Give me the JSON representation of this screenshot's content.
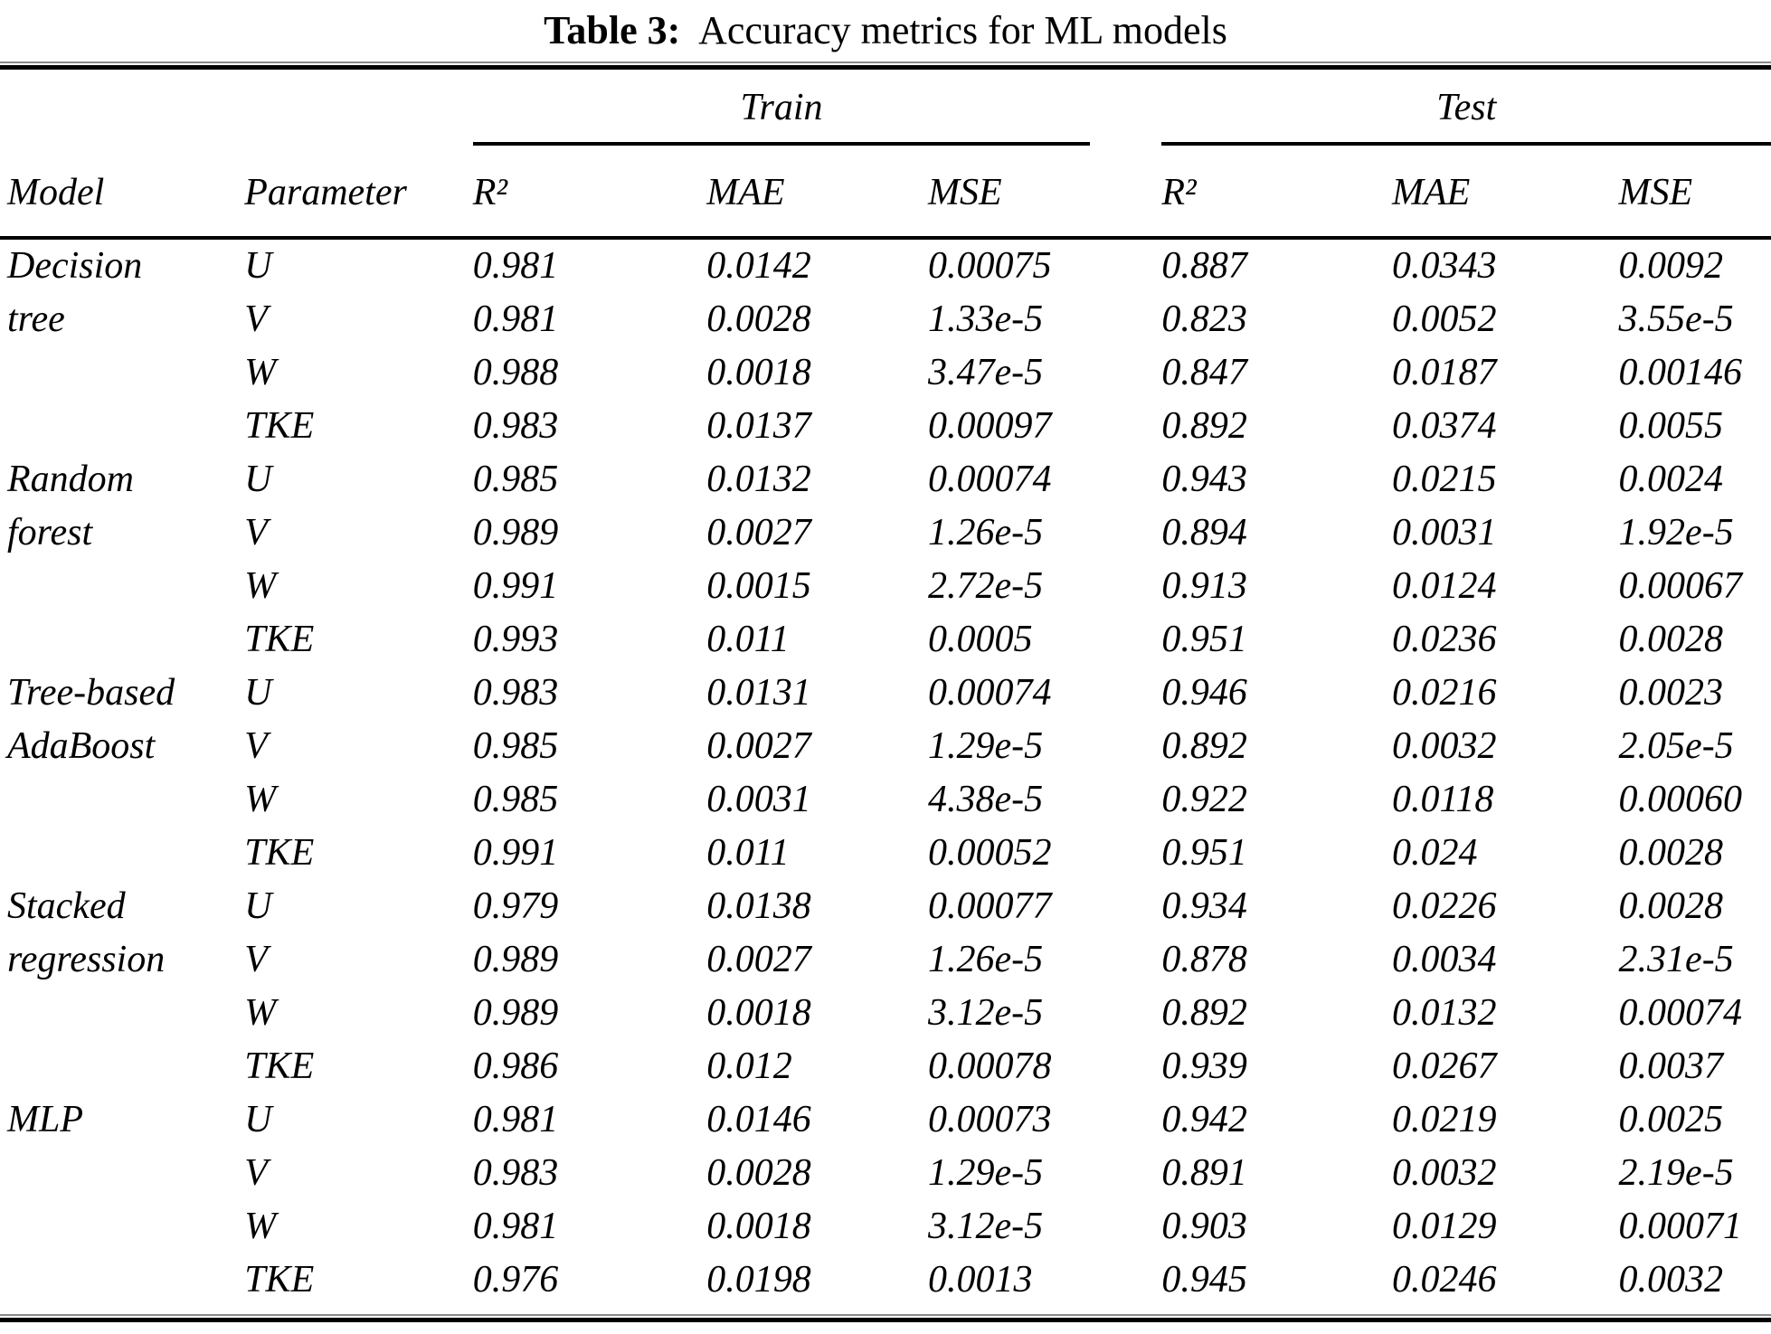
{
  "title": {
    "label": "Table 3:",
    "rest": "Accuracy metrics for ML models"
  },
  "table": {
    "columns": {
      "model": "Model",
      "parameter": "Parameter"
    },
    "groups_header": {
      "train": "Train",
      "test": "Test"
    },
    "metric_headers": [
      "R²",
      "MAE",
      "MSE"
    ],
    "model_groups": [
      {
        "model_lines": [
          "Decision",
          "tree"
        ],
        "rows": [
          {
            "parameter": "U",
            "train": [
              "0.981",
              "0.0142",
              "0.00075"
            ],
            "test": [
              "0.887",
              "0.0343",
              "0.0092"
            ]
          },
          {
            "parameter": "V",
            "train": [
              "0.981",
              "0.0028",
              "1.33e-5"
            ],
            "test": [
              "0.823",
              "0.0052",
              "3.55e-5"
            ]
          },
          {
            "parameter": "W",
            "train": [
              "0.988",
              "0.0018",
              "3.47e-5"
            ],
            "test": [
              "0.847",
              "0.0187",
              "0.00146"
            ]
          },
          {
            "parameter": "TKE",
            "train": [
              "0.983",
              "0.0137",
              "0.00097"
            ],
            "test": [
              "0.892",
              "0.0374",
              "0.0055"
            ]
          }
        ]
      },
      {
        "model_lines": [
          "Random",
          "forest"
        ],
        "rows": [
          {
            "parameter": "U",
            "train": [
              "0.985",
              "0.0132",
              "0.00074"
            ],
            "test": [
              "0.943",
              "0.0215",
              "0.0024"
            ]
          },
          {
            "parameter": "V",
            "train": [
              "0.989",
              "0.0027",
              "1.26e-5"
            ],
            "test": [
              "0.894",
              "0.0031",
              "1.92e-5"
            ]
          },
          {
            "parameter": "W",
            "train": [
              "0.991",
              "0.0015",
              "2.72e-5"
            ],
            "test": [
              "0.913",
              "0.0124",
              "0.00067"
            ]
          },
          {
            "parameter": "TKE",
            "train": [
              "0.993",
              "0.011",
              "0.0005"
            ],
            "test": [
              "0.951",
              "0.0236",
              "0.0028"
            ]
          }
        ]
      },
      {
        "model_lines": [
          "Tree-based",
          "AdaBoost"
        ],
        "rows": [
          {
            "parameter": "U",
            "train": [
              "0.983",
              "0.0131",
              "0.00074"
            ],
            "test": [
              "0.946",
              "0.0216",
              "0.0023"
            ]
          },
          {
            "parameter": "V",
            "train": [
              "0.985",
              "0.0027",
              "1.29e-5"
            ],
            "test": [
              "0.892",
              "0.0032",
              "2.05e-5"
            ]
          },
          {
            "parameter": "W",
            "train": [
              "0.985",
              "0.0031",
              "4.38e-5"
            ],
            "test": [
              "0.922",
              "0.0118",
              "0.00060"
            ]
          },
          {
            "parameter": "TKE",
            "train": [
              "0.991",
              "0.011",
              "0.00052"
            ],
            "test": [
              "0.951",
              "0.024",
              "0.0028"
            ]
          }
        ]
      },
      {
        "model_lines": [
          "Stacked",
          "regression"
        ],
        "rows": [
          {
            "parameter": "U",
            "train": [
              "0.979",
              "0.0138",
              "0.00077"
            ],
            "test": [
              "0.934",
              "0.0226",
              "0.0028"
            ]
          },
          {
            "parameter": "V",
            "train": [
              "0.989",
              "0.0027",
              "1.26e-5"
            ],
            "test": [
              "0.878",
              "0.0034",
              "2.31e-5"
            ]
          },
          {
            "parameter": "W",
            "train": [
              "0.989",
              "0.0018",
              "3.12e-5"
            ],
            "test": [
              "0.892",
              "0.0132",
              "0.00074"
            ]
          },
          {
            "parameter": "TKE",
            "train": [
              "0.986",
              "0.012",
              "0.00078"
            ],
            "test": [
              "0.939",
              "0.0267",
              "0.0037"
            ]
          }
        ]
      },
      {
        "model_lines": [
          "MLP"
        ],
        "rows": [
          {
            "parameter": "U",
            "train": [
              "0.981",
              "0.0146",
              "0.00073"
            ],
            "test": [
              "0.942",
              "0.0219",
              "0.0025"
            ]
          },
          {
            "parameter": "V",
            "train": [
              "0.983",
              "0.0028",
              "1.29e-5"
            ],
            "test": [
              "0.891",
              "0.0032",
              "2.19e-5"
            ]
          },
          {
            "parameter": "W",
            "train": [
              "0.981",
              "0.0018",
              "3.12e-5"
            ],
            "test": [
              "0.903",
              "0.0129",
              "0.00071"
            ]
          },
          {
            "parameter": "TKE",
            "train": [
              "0.976",
              "0.0198",
              "0.0013"
            ],
            "test": [
              "0.945",
              "0.0246",
              "0.0032"
            ]
          }
        ]
      }
    ]
  }
}
